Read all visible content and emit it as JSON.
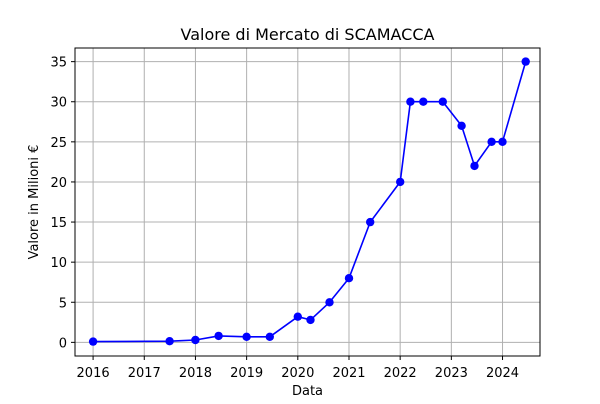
{
  "chart_data": {
    "type": "line",
    "title": "Valore di Mercato di SCAMACCA",
    "xlabel": "Data",
    "ylabel": "Valore in Milioni €",
    "x_ticks": [
      "2016",
      "2017",
      "2018",
      "2019",
      "2020",
      "2021",
      "2022",
      "2023",
      "2024"
    ],
    "y_ticks": [
      "0",
      "5",
      "10",
      "15",
      "20",
      "25",
      "30",
      "35"
    ],
    "xlim": [
      "2015-08-25",
      "2024-09-25"
    ],
    "ylim": [
      -1.7,
      36.7
    ],
    "grid": true,
    "series": [
      {
        "color": "#0000ff",
        "marker": "circle",
        "points": [
          {
            "x": "2016-01-01",
            "y": 0.1
          },
          {
            "x": "2017-07-01",
            "y": 0.15
          },
          {
            "x": "2018-01-01",
            "y": 0.3
          },
          {
            "x": "2018-06-15",
            "y": 0.8
          },
          {
            "x": "2019-01-01",
            "y": 0.7
          },
          {
            "x": "2019-06-15",
            "y": 0.7
          },
          {
            "x": "2020-01-01",
            "y": 3.2
          },
          {
            "x": "2020-04-01",
            "y": 2.8
          },
          {
            "x": "2020-08-15",
            "y": 5
          },
          {
            "x": "2021-01-01",
            "y": 8
          },
          {
            "x": "2021-06-01",
            "y": 15
          },
          {
            "x": "2022-01-01",
            "y": 20
          },
          {
            "x": "2022-03-15",
            "y": 30
          },
          {
            "x": "2022-06-15",
            "y": 30
          },
          {
            "x": "2022-11-01",
            "y": 30
          },
          {
            "x": "2023-03-15",
            "y": 27
          },
          {
            "x": "2023-06-15",
            "y": 22
          },
          {
            "x": "2023-10-15",
            "y": 25
          },
          {
            "x": "2024-01-01",
            "y": 25
          },
          {
            "x": "2024-06-15",
            "y": 35
          }
        ]
      }
    ]
  }
}
